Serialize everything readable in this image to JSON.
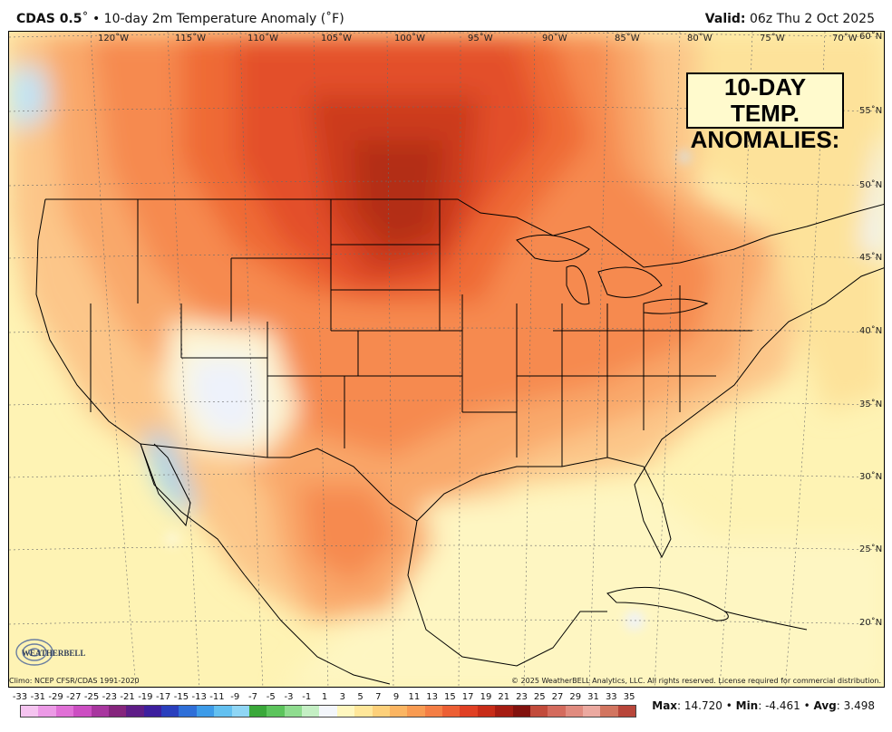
{
  "header": {
    "model": "CDAS 0.5",
    "title_rest": "˚ • 10-day 2m Temperature Anomaly (˚F)",
    "valid_label": "Valid:",
    "valid_time": "06z Thu 2 Oct 2025"
  },
  "callout": {
    "line1": "10-DAY TEMP.",
    "line2": "ANOMALIES:"
  },
  "lon_labels": [
    "120˚W",
    "115˚W",
    "110˚W",
    "105˚W",
    "100˚W",
    "95˚W",
    "90˚W",
    "85˚W",
    "80˚W",
    "75˚W",
    "70˚W"
  ],
  "lat_labels": [
    "60˚N",
    "55˚N",
    "50˚N",
    "45˚N",
    "40˚N",
    "35˚N",
    "30˚N",
    "25˚N",
    "20˚N"
  ],
  "footer": {
    "climo": "Climo: NCEP CFSR/CDAS 1991-2020",
    "copyright": "© 2025 WeatherBELL Analytics, LLC. All rights reserved. License required for commercial distribution."
  },
  "logo_text": "WEATHERBELL",
  "colorbar": {
    "labels": [
      "-33",
      "-31",
      "-29",
      "-27",
      "-25",
      "-23",
      "-21",
      "-19",
      "-17",
      "-15",
      "-13",
      "-11",
      "-9",
      "-7",
      "-5",
      "-3",
      "-1",
      "1",
      "3",
      "5",
      "7",
      "9",
      "11",
      "13",
      "15",
      "17",
      "19",
      "21",
      "23",
      "25",
      "27",
      "29",
      "31",
      "33",
      "35"
    ],
    "colors": [
      "#f5c4f0",
      "#ec9ae6",
      "#e070d6",
      "#cc4ec2",
      "#a8369f",
      "#85257d",
      "#5e1d87",
      "#3d1f9e",
      "#2a3fbd",
      "#2f6fd8",
      "#3d9be8",
      "#63c0f0",
      "#8fd6f5",
      "#3aa83a",
      "#5cc45c",
      "#8fdc8f",
      "#c4efc4",
      "#f3f6fb",
      "#fff7bf",
      "#ffe79a",
      "#fdd07a",
      "#fbb562",
      "#f89b52",
      "#f47e45",
      "#ec5f34",
      "#e04024",
      "#c82c18",
      "#a51c12",
      "#82120e",
      "#c24b3b",
      "#d46b5d",
      "#e08b7f",
      "#eba9a0",
      "#d27560",
      "#b8463a"
    ]
  },
  "stats": {
    "max_label": "Max",
    "max_value": "14.720",
    "min_label": "Min",
    "min_value": "-4.461",
    "avg_label": "Avg",
    "avg_value": "3.498"
  }
}
